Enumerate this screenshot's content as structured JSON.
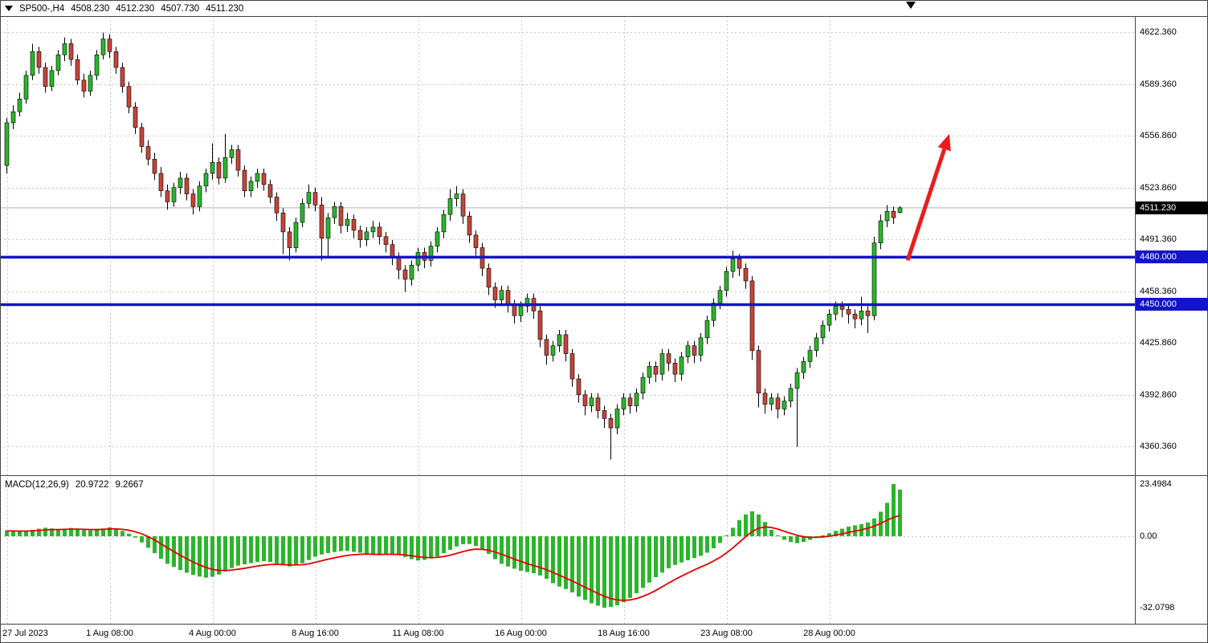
{
  "header": {
    "symbol_period": "SP500-,H4",
    "open": "4508.230",
    "high": "4512.230",
    "low": "4507.730",
    "close": "4511.230"
  },
  "indicator_panel": {
    "label": "MACD(12,26,9)",
    "macd_value": "20.9722",
    "signal_value": "9.2667"
  },
  "price_axis": {
    "labels": [
      "4622.360",
      "4589.360",
      "4556.860",
      "4523.860",
      "4491.360",
      "4458.360",
      "4425.860",
      "4392.860",
      "4360.360"
    ],
    "current_price": "4511.230",
    "level_badges": [
      "4480.000",
      "4450.000"
    ]
  },
  "time_axis": {
    "labels": [
      "27 Jul 2023",
      "1 Aug 08:00",
      "4 Aug 00:00",
      "8 Aug 16:00",
      "11 Aug 08:00",
      "16 Aug 00:00",
      "18 Aug 16:00",
      "23 Aug 08:00",
      "28 Aug 00:00"
    ]
  },
  "colors": {
    "up": "#2bb52b",
    "down": "#c5443a",
    "wick": "#000000",
    "level": "#1414cc",
    "signal": "#e60000",
    "arrow": "#ec1c1c",
    "grid": "#c8c8c8",
    "frame": "#444444",
    "current_price_line": "#b0b0b0"
  },
  "chart_data": {
    "type": "candlestick",
    "title": "SP500-,H4",
    "price_ylim": [
      4342.1,
      4632.5
    ],
    "current_price": 4511.23,
    "levels": [
      4480.0,
      4450.0
    ],
    "x_ticks": [
      {
        "i": 0,
        "label": "27 Jul 2023"
      },
      {
        "i": 16,
        "label": "1 Aug 08:00"
      },
      {
        "i": 32,
        "label": "4 Aug 00:00"
      },
      {
        "i": 48,
        "label": "8 Aug 16:00"
      },
      {
        "i": 64,
        "label": "11 Aug 08:00"
      },
      {
        "i": 80,
        "label": "16 Aug 00:00"
      },
      {
        "i": 96,
        "label": "18 Aug 16:00"
      },
      {
        "i": 112,
        "label": "23 Aug 08:00"
      },
      {
        "i": 128,
        "label": "28 Aug 00:00"
      }
    ],
    "candles": [
      [
        4538,
        4568,
        4533,
        4565
      ],
      [
        4565,
        4576,
        4561,
        4572
      ],
      [
        4572,
        4584,
        4569,
        4580
      ],
      [
        4580,
        4598,
        4577,
        4595
      ],
      [
        4595,
        4615,
        4592,
        4610
      ],
      [
        4610,
        4613,
        4596,
        4600
      ],
      [
        4600,
        4603,
        4584,
        4588
      ],
      [
        4588,
        4601,
        4585,
        4598
      ],
      [
        4598,
        4611,
        4595,
        4608
      ],
      [
        4608,
        4619,
        4604,
        4615
      ],
      [
        4615,
        4618,
        4601,
        4605
      ],
      [
        4605,
        4608,
        4589,
        4592
      ],
      [
        4592,
        4596,
        4581,
        4585
      ],
      [
        4585,
        4598,
        4582,
        4595
      ],
      [
        4595,
        4611,
        4592,
        4608
      ],
      [
        4608,
        4622,
        4605,
        4618
      ],
      [
        4618,
        4621,
        4606,
        4610
      ],
      [
        4610,
        4613,
        4596,
        4600
      ],
      [
        4600,
        4603,
        4584,
        4588
      ],
      [
        4588,
        4591,
        4571,
        4575
      ],
      [
        4575,
        4578,
        4558,
        4562
      ],
      [
        4562,
        4565,
        4546,
        4550
      ],
      [
        4550,
        4554,
        4538,
        4542
      ],
      [
        4542,
        4546,
        4529,
        4533
      ],
      [
        4533,
        4537,
        4518,
        4522
      ],
      [
        4522,
        4526,
        4510,
        4515
      ],
      [
        4515,
        4527,
        4512,
        4524
      ],
      [
        4524,
        4534,
        4520,
        4530
      ],
      [
        4530,
        4533,
        4516,
        4520
      ],
      [
        4520,
        4523,
        4507,
        4512
      ],
      [
        4512,
        4528,
        4509,
        4525
      ],
      [
        4525,
        4536,
        4521,
        4533
      ],
      [
        4533,
        4552,
        4529,
        4540
      ],
      [
        4540,
        4543,
        4526,
        4530
      ],
      [
        4530,
        4558,
        4527,
        4543
      ],
      [
        4543,
        4551,
        4539,
        4548
      ],
      [
        4548,
        4551,
        4531,
        4535
      ],
      [
        4535,
        4538,
        4518,
        4522
      ],
      [
        4522,
        4531,
        4518,
        4528
      ],
      [
        4528,
        4536,
        4524,
        4533
      ],
      [
        4533,
        4536,
        4522,
        4526
      ],
      [
        4526,
        4529,
        4514,
        4518
      ],
      [
        4518,
        4521,
        4503,
        4508
      ],
      [
        4508,
        4511,
        4482,
        4496
      ],
      [
        4496,
        4499,
        4478,
        4486
      ],
      [
        4486,
        4505,
        4483,
        4502
      ],
      [
        4502,
        4517,
        4499,
        4514
      ],
      [
        4514,
        4526,
        4511,
        4521
      ],
      [
        4521,
        4524,
        4509,
        4513
      ],
      [
        4513,
        4518,
        4478,
        4492
      ],
      [
        4492,
        4508,
        4480,
        4505
      ],
      [
        4505,
        4515,
        4501,
        4512
      ],
      [
        4512,
        4515,
        4495,
        4500
      ],
      [
        4500,
        4508,
        4496,
        4504
      ],
      [
        4504,
        4507,
        4492,
        4497
      ],
      [
        4497,
        4500,
        4486,
        4491
      ],
      [
        4491,
        4499,
        4487,
        4496
      ],
      [
        4496,
        4503,
        4492,
        4499
      ],
      [
        4499,
        4502,
        4488,
        4493
      ],
      [
        4493,
        4496,
        4483,
        4488
      ],
      [
        4488,
        4491,
        4475,
        4480
      ],
      [
        4480,
        4483,
        4466,
        4472
      ],
      [
        4472,
        4475,
        4458,
        4466
      ],
      [
        4466,
        4478,
        4462,
        4475
      ],
      [
        4475,
        4486,
        4471,
        4483
      ],
      [
        4483,
        4486,
        4473,
        4478
      ],
      [
        4478,
        4490,
        4474,
        4487
      ],
      [
        4487,
        4499,
        4483,
        4496
      ],
      [
        4496,
        4510,
        4492,
        4507
      ],
      [
        4507,
        4523,
        4503,
        4517
      ],
      [
        4517,
        4525,
        4512,
        4520
      ],
      [
        4520,
        4523,
        4501,
        4506
      ],
      [
        4506,
        4509,
        4489,
        4494
      ],
      [
        4494,
        4497,
        4481,
        4486
      ],
      [
        4486,
        4489,
        4468,
        4473
      ],
      [
        4473,
        4476,
        4456,
        4461
      ],
      [
        4461,
        4464,
        4448,
        4453
      ],
      [
        4453,
        4462,
        4449,
        4459
      ],
      [
        4459,
        4462,
        4445,
        4450
      ],
      [
        4450,
        4453,
        4438,
        4443
      ],
      [
        4443,
        4452,
        4439,
        4449
      ],
      [
        4449,
        4457,
        4445,
        4454
      ],
      [
        4454,
        4457,
        4441,
        4446
      ],
      [
        4446,
        4449,
        4423,
        4428
      ],
      [
        4428,
        4431,
        4412,
        4418
      ],
      [
        4418,
        4427,
        4414,
        4424
      ],
      [
        4424,
        4434,
        4420,
        4431
      ],
      [
        4431,
        4434,
        4414,
        4419
      ],
      [
        4419,
        4422,
        4398,
        4403
      ],
      [
        4403,
        4406,
        4388,
        4393
      ],
      [
        4393,
        4396,
        4380,
        4386
      ],
      [
        4386,
        4394,
        4382,
        4391
      ],
      [
        4391,
        4394,
        4378,
        4383
      ],
      [
        4383,
        4386,
        4372,
        4378
      ],
      [
        4378,
        4381,
        4352,
        4372
      ],
      [
        4372,
        4387,
        4368,
        4384
      ],
      [
        4384,
        4394,
        4380,
        4391
      ],
      [
        4391,
        4394,
        4381,
        4386
      ],
      [
        4386,
        4397,
        4382,
        4394
      ],
      [
        4394,
        4407,
        4390,
        4404
      ],
      [
        4404,
        4414,
        4400,
        4411
      ],
      [
        4411,
        4414,
        4401,
        4406
      ],
      [
        4406,
        4422,
        4402,
        4419
      ],
      [
        4419,
        4422,
        4408,
        4413
      ],
      [
        4413,
        4416,
        4401,
        4406
      ],
      [
        4406,
        4420,
        4402,
        4417
      ],
      [
        4417,
        4427,
        4413,
        4424
      ],
      [
        4424,
        4427,
        4413,
        4418
      ],
      [
        4418,
        4432,
        4414,
        4429
      ],
      [
        4429,
        4443,
        4425,
        4440
      ],
      [
        4440,
        4454,
        4436,
        4451
      ],
      [
        4451,
        4462,
        4447,
        4459
      ],
      [
        4459,
        4474,
        4455,
        4471
      ],
      [
        4471,
        4484,
        4467,
        4479
      ],
      [
        4479,
        4482,
        4468,
        4473
      ],
      [
        4473,
        4476,
        4460,
        4465
      ],
      [
        4465,
        4468,
        4415,
        4421
      ],
      [
        4421,
        4424,
        4385,
        4394
      ],
      [
        4394,
        4397,
        4381,
        4387
      ],
      [
        4387,
        4394,
        4383,
        4391
      ],
      [
        4391,
        4394,
        4378,
        4384
      ],
      [
        4384,
        4392,
        4380,
        4389
      ],
      [
        4389,
        4400,
        4385,
        4397
      ],
      [
        4397,
        4410,
        4360,
        4407
      ],
      [
        4407,
        4417,
        4403,
        4414
      ],
      [
        4414,
        4424,
        4410,
        4421
      ],
      [
        4421,
        4432,
        4417,
        4429
      ],
      [
        4429,
        4440,
        4425,
        4437
      ],
      [
        4437,
        4447,
        4433,
        4444
      ],
      [
        4444,
        4452,
        4440,
        4449
      ],
      [
        4449,
        4452,
        4442,
        4447
      ],
      [
        4447,
        4450,
        4438,
        4444
      ],
      [
        4444,
        4447,
        4435,
        4441
      ],
      [
        4441,
        4455,
        4437,
        4446
      ],
      [
        4446,
        4449,
        4432,
        4443
      ],
      [
        4443,
        4493,
        4440,
        4489
      ],
      [
        4489,
        4507,
        4485,
        4503
      ],
      [
        4503,
        4513,
        4499,
        4509
      ],
      [
        4509,
        4512,
        4501,
        4505
      ],
      [
        4508.23,
        4512.23,
        4507.73,
        4511.23
      ]
    ],
    "macd": {
      "ylim": [
        -39.3,
        27.4
      ],
      "axis_labels": [
        "23.4984",
        "0.00",
        "-32.0798"
      ],
      "values": [
        20.9722,
        9.2667
      ],
      "histogram": [
        2.6,
        2.4,
        2.2,
        2.4,
        2.9,
        3.4,
        3.8,
        3.5,
        3.1,
        3.3,
        3.7,
        3.3,
        2.8,
        2.6,
        3.0,
        3.5,
        4.0,
        3.4,
        2.4,
        1.1,
        -0.6,
        -2.8,
        -5.2,
        -7.6,
        -10.1,
        -12.4,
        -13.8,
        -15.2,
        -16.4,
        -17.4,
        -18.1,
        -18.6,
        -18.2,
        -17.2,
        -15.8,
        -14.3,
        -13.2,
        -12.6,
        -12.1,
        -11.6,
        -11.2,
        -11.6,
        -12.2,
        -13.1,
        -13.6,
        -13.1,
        -12.1,
        -10.7,
        -9.2,
        -8.2,
        -7.6,
        -7.1,
        -6.7,
        -6.6,
        -7.0,
        -7.4,
        -7.9,
        -8.3,
        -8.4,
        -8.1,
        -8.0,
        -8.4,
        -9.3,
        -10.3,
        -10.9,
        -10.6,
        -10.0,
        -9.1,
        -7.6,
        -6.1,
        -4.6,
        -3.6,
        -3.5,
        -4.4,
        -5.9,
        -7.9,
        -10.3,
        -12.4,
        -13.6,
        -14.6,
        -15.5,
        -16.1,
        -16.6,
        -17.6,
        -19.1,
        -21.1,
        -22.6,
        -23.7,
        -25.2,
        -27.1,
        -28.6,
        -30.1,
        -31.2,
        -32.0798,
        -31.8,
        -31.0,
        -29.6,
        -27.7,
        -25.6,
        -23.2,
        -20.8,
        -18.4,
        -16.3,
        -14.4,
        -12.9,
        -11.8,
        -10.8,
        -9.8,
        -8.8,
        -7.4,
        -5.4,
        -3.0,
        0.4,
        3.8,
        7.2,
        9.8,
        11.2,
        9.8,
        6.4,
        2.9,
        0.4,
        -1.6,
        -2.6,
        -3.1,
        -2.6,
        -1.6,
        -0.6,
        0.4,
        1.4,
        2.4,
        3.4,
        4.3,
        4.9,
        5.4,
        6.2,
        8.0,
        11.0,
        15.0,
        23.4984,
        20.9722
      ],
      "signal": [
        2.4,
        2.4,
        2.3,
        2.3,
        2.4,
        2.6,
        2.8,
        3.0,
        3.0,
        3.1,
        3.2,
        3.2,
        3.1,
        3.0,
        3.0,
        3.1,
        3.3,
        3.3,
        3.1,
        2.7,
        2.0,
        1.1,
        -0.2,
        -1.7,
        -3.4,
        -5.2,
        -6.9,
        -8.6,
        -10.1,
        -11.6,
        -12.9,
        -14.0,
        -14.9,
        -15.3,
        -15.4,
        -15.2,
        -14.8,
        -14.4,
        -13.9,
        -13.4,
        -13.0,
        -12.7,
        -12.6,
        -12.7,
        -12.9,
        -12.9,
        -12.8,
        -12.4,
        -11.7,
        -11.0,
        -10.3,
        -9.7,
        -9.1,
        -8.6,
        -8.3,
        -8.1,
        -8.0,
        -8.1,
        -8.2,
        -8.1,
        -8.1,
        -8.2,
        -8.4,
        -8.8,
        -9.2,
        -9.5,
        -9.6,
        -9.5,
        -9.1,
        -8.5,
        -7.7,
        -6.9,
        -6.2,
        -5.8,
        -5.9,
        -6.3,
        -7.1,
        -8.1,
        -9.2,
        -10.3,
        -11.3,
        -12.3,
        -13.2,
        -14.0,
        -15.1,
        -16.3,
        -17.5,
        -18.8,
        -20.1,
        -21.5,
        -22.9,
        -24.3,
        -25.7,
        -27.0,
        -28.0,
        -28.6,
        -28.8,
        -28.6,
        -28.0,
        -27.0,
        -25.8,
        -24.3,
        -22.7,
        -21.0,
        -19.4,
        -17.9,
        -16.5,
        -15.1,
        -13.8,
        -12.6,
        -11.1,
        -9.5,
        -7.5,
        -5.2,
        -2.7,
        -0.2,
        2.1,
        3.6,
        4.2,
        3.9,
        3.2,
        2.2,
        1.3,
        0.4,
        -0.2,
        -0.5,
        -0.5,
        -0.3,
        0.0,
        0.5,
        1.1,
        1.7,
        2.3,
        2.9,
        3.6,
        4.5,
        5.8,
        7.2,
        8.5,
        9.2667
      ]
    },
    "arrow": {
      "from": {
        "i": 140.5,
        "price": 4478
      },
      "to": {
        "i": 147.0,
        "price": 4558
      }
    }
  }
}
